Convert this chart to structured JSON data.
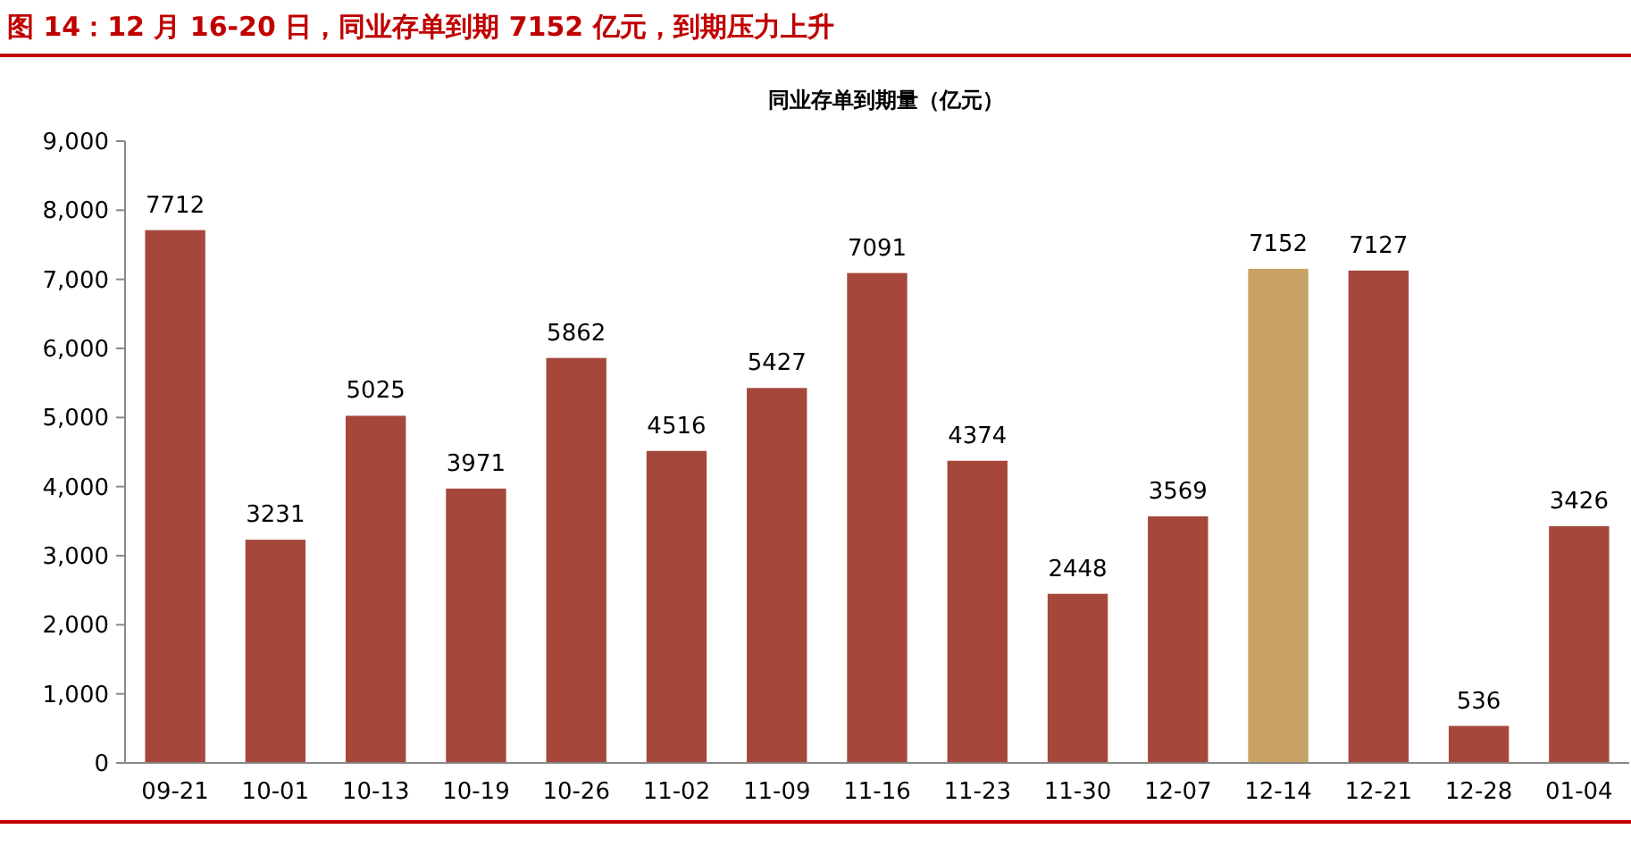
{
  "chart_data": {
    "type": "bar",
    "title": "图 14：12 月 16-20 日，同业存单到期 7152 亿元，到期压力上升",
    "subtitle": "同业存单到期量（亿元）",
    "categories": [
      "09-21",
      "10-01",
      "10-13",
      "10-19",
      "10-26",
      "11-02",
      "11-09",
      "11-16",
      "11-23",
      "11-30",
      "12-07",
      "12-14",
      "12-21",
      "12-28",
      "01-04"
    ],
    "values": [
      7712,
      3231,
      5025,
      3971,
      5862,
      4516,
      5427,
      7091,
      4374,
      2448,
      3569,
      7152,
      7127,
      536,
      3426
    ],
    "colors": [
      "#a5473a",
      "#a5473a",
      "#a5473a",
      "#a5473a",
      "#a5473a",
      "#a5473a",
      "#a5473a",
      "#a5473a",
      "#a5473a",
      "#a5473a",
      "#a5473a",
      "#c9a265",
      "#a5473a",
      "#a5473a",
      "#a5473a"
    ],
    "ylim": [
      0,
      9000
    ],
    "yticks": [
      {
        "value": 0,
        "label": "0"
      },
      {
        "value": 1000,
        "label": "1,000"
      },
      {
        "value": 2000,
        "label": "2,000"
      },
      {
        "value": 3000,
        "label": "3,000"
      },
      {
        "value": 4000,
        "label": "4,000"
      },
      {
        "value": 5000,
        "label": "5,000"
      },
      {
        "value": 6000,
        "label": "6,000"
      },
      {
        "value": 7000,
        "label": "7,000"
      },
      {
        "value": 8000,
        "label": "8,000"
      },
      {
        "value": 9000,
        "label": "9,000"
      }
    ],
    "data_labels": true,
    "grid": false
  }
}
